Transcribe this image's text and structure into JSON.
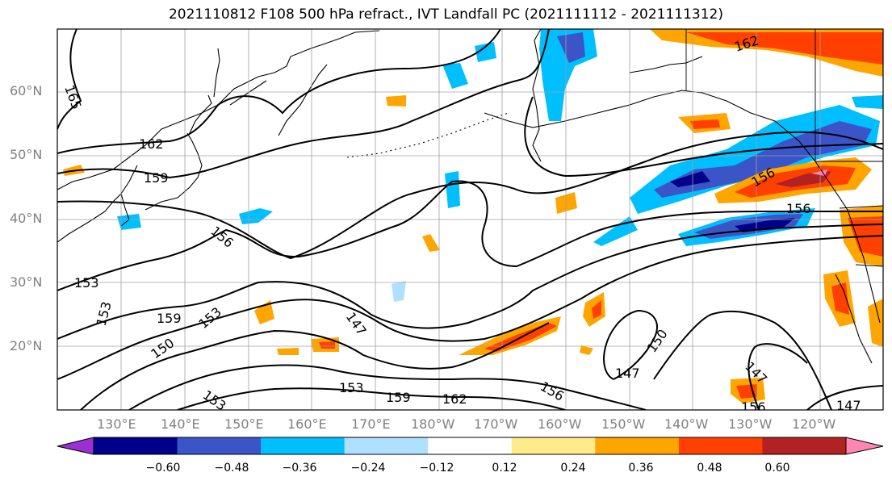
{
  "title": "2021110812 F108 500 hPa refract., IVT Landfall PC (2021111112 - 2021111312)",
  "lat_labels": [
    "60°N",
    "50°N",
    "40°N",
    "30°N",
    "20°N"
  ],
  "lon_labels": [
    "130°E",
    "140°E",
    "150°E",
    "160°E",
    "170°E",
    "180°W",
    "170°W",
    "160°W",
    "150°W",
    "140°W",
    "130°W",
    "120°W"
  ],
  "colorbar": {
    "ticks": [
      "−0.60",
      "−0.48",
      "−0.36",
      "−0.24",
      "−0.12",
      "0.12",
      "0.24",
      "0.36",
      "0.48",
      "0.60"
    ],
    "colors": [
      "#9b30d0",
      "#00008b",
      "#3b55c8",
      "#00bfff",
      "#b0e0ff",
      "#ffffff",
      "#ffeb8a",
      "#ffa500",
      "#ff4000",
      "#b22222",
      "#ff85b3"
    ]
  },
  "contour_labels": [
    "165",
    "162",
    "159",
    "156",
    "153",
    "153",
    "150",
    "159",
    "153",
    "147",
    "153",
    "159",
    "162",
    "156",
    "147",
    "150",
    "147",
    "156",
    "147",
    "162",
    "156",
    "156"
  ]
}
